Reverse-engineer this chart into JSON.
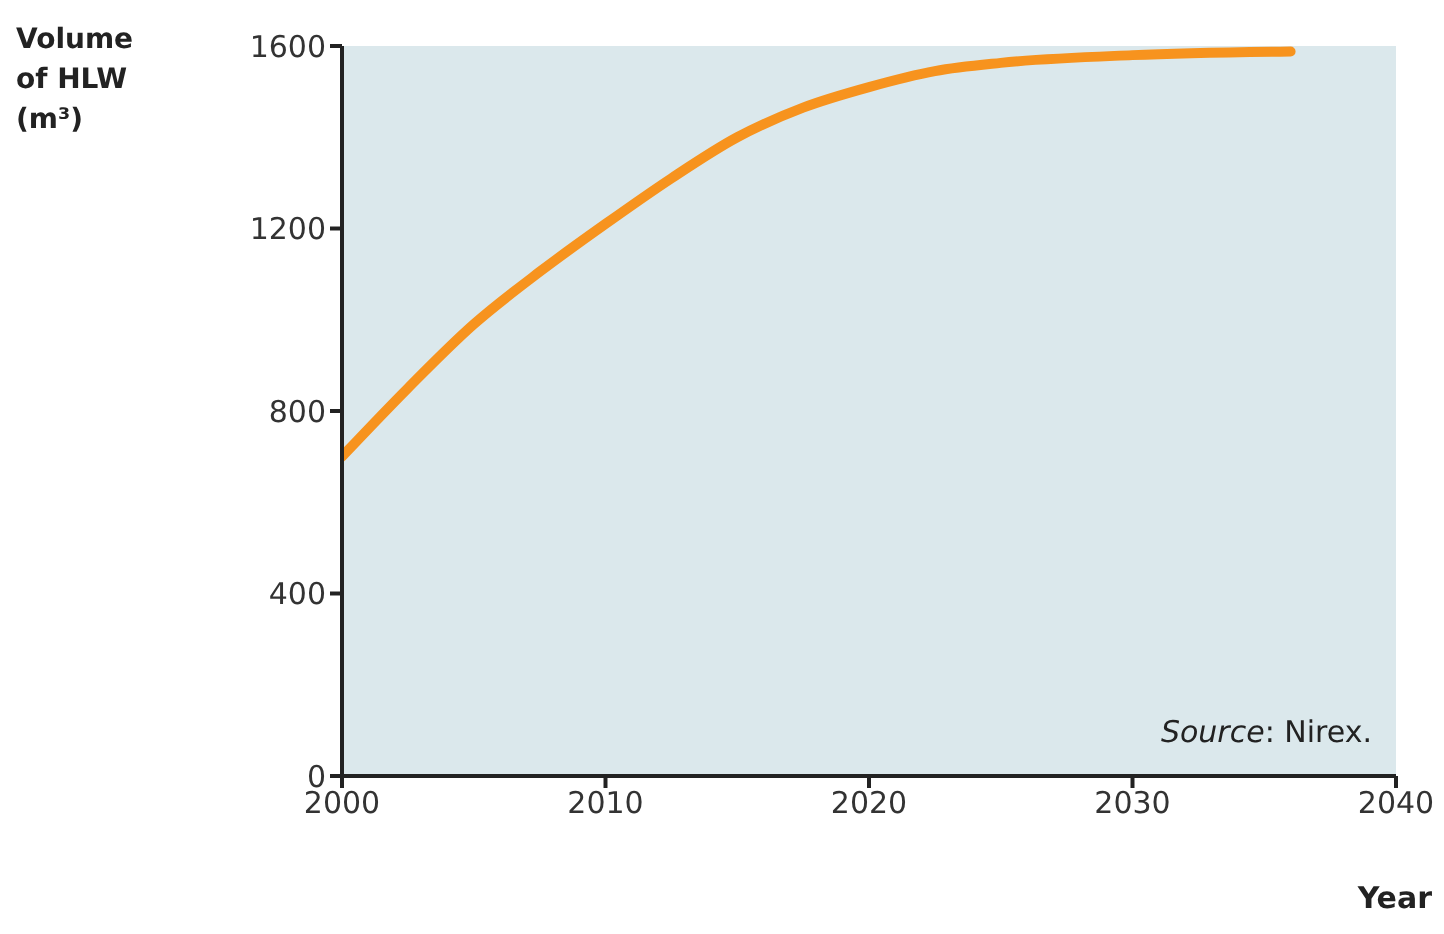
{
  "chart_data": {
    "type": "line",
    "ylabel": "Volume of HLW (m³)",
    "xlabel": "Year",
    "x": [
      2000,
      2002.5,
      2005,
      2007.5,
      2010,
      2012.5,
      2015,
      2017.5,
      2020,
      2022.5,
      2025,
      2030,
      2036
    ],
    "series": [
      {
        "color": "#f7931e",
        "values": [
          700,
          850,
          990,
          1105,
          1210,
          1310,
          1400,
          1465,
          1510,
          1545,
          1563,
          1580,
          1588
        ]
      }
    ],
    "xlim": [
      2000,
      2040
    ],
    "xticks": [
      2000,
      2010,
      2020,
      2030,
      2040
    ],
    "ylim": [
      0,
      1600
    ],
    "yticks": [
      0,
      400,
      800,
      1200,
      1600
    ],
    "grid": false,
    "marker": "none",
    "line_style": "solid",
    "annotations": [
      "Source: Nirex."
    ]
  }
}
